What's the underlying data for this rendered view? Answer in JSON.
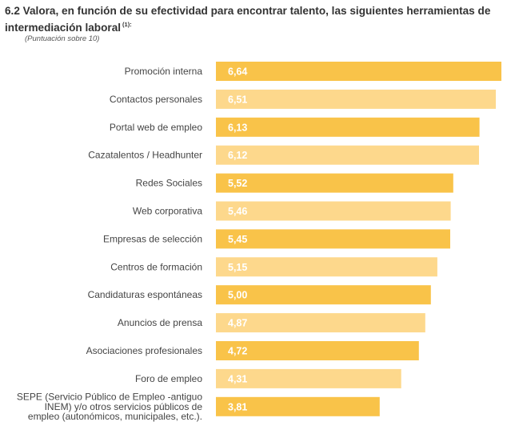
{
  "header": {
    "title": "6.2 Valora, en función de su efectividad para encontrar talento, las siguientes herramientas de intermediación laboral",
    "title_note": "(1):",
    "subtitle": "(Puntuación sobre 10)"
  },
  "colors": {
    "bar_primary": "#f9c349",
    "bar_secondary": "#fdd88c",
    "value_text": "#ffffff",
    "label_text": "#444444"
  },
  "chart_data": {
    "type": "bar",
    "orientation": "horizontal",
    "title": "6.2 Valora, en función de su efectividad para encontrar talento, las siguientes herramientas de intermediación laboral",
    "subtitle": "(Puntuación sobre 10)",
    "categories": [
      "Promoción interna",
      "Contactos personales",
      "Portal web de empleo",
      "Cazatalentos / Headhunter",
      "Redes Sociales",
      "Web corporativa",
      "Empresas de selección",
      "Centros de formación",
      "Candidaturas espontáneas",
      "Anuncios de prensa",
      "Asociaciones profesionales",
      "Foro de empleo",
      "SEPE (Servicio Público de Empleo -antiguo INEM) y/o otros servicios públicos de empleo (autonómicos, municipales, etc.)."
    ],
    "category_lines": [
      [
        "Promoción interna"
      ],
      [
        "Contactos personales"
      ],
      [
        "Portal web de empleo"
      ],
      [
        "Cazatalentos / Headhunter"
      ],
      [
        "Redes Sociales"
      ],
      [
        "Web corporativa"
      ],
      [
        "Empresas de selección"
      ],
      [
        "Centros de formación"
      ],
      [
        "Candidaturas espontáneas"
      ],
      [
        "Anuncios de prensa"
      ],
      [
        "Asociaciones profesionales"
      ],
      [
        "Foro de empleo"
      ],
      [
        "SEPE (Servicio Público de Empleo -antiguo",
        "INEM) y/o otros servicios públicos de",
        "empleo (autonómicos, municipales, etc.)."
      ]
    ],
    "values": [
      6.64,
      6.51,
      6.13,
      6.12,
      5.52,
      5.46,
      5.45,
      5.15,
      5.0,
      4.87,
      4.72,
      4.31,
      3.81
    ],
    "value_labels": [
      "6,64",
      "6,51",
      "6,13",
      "6,12",
      "5,52",
      "5,46",
      "5,45",
      "5,15",
      "5,00",
      "4,87",
      "4,72",
      "4,31",
      "3,81"
    ],
    "bar_color_pattern": [
      "primary",
      "secondary"
    ],
    "xlim": [
      0,
      6.64
    ],
    "xlabel": "",
    "ylabel": "",
    "grid": false,
    "legend": "none"
  }
}
